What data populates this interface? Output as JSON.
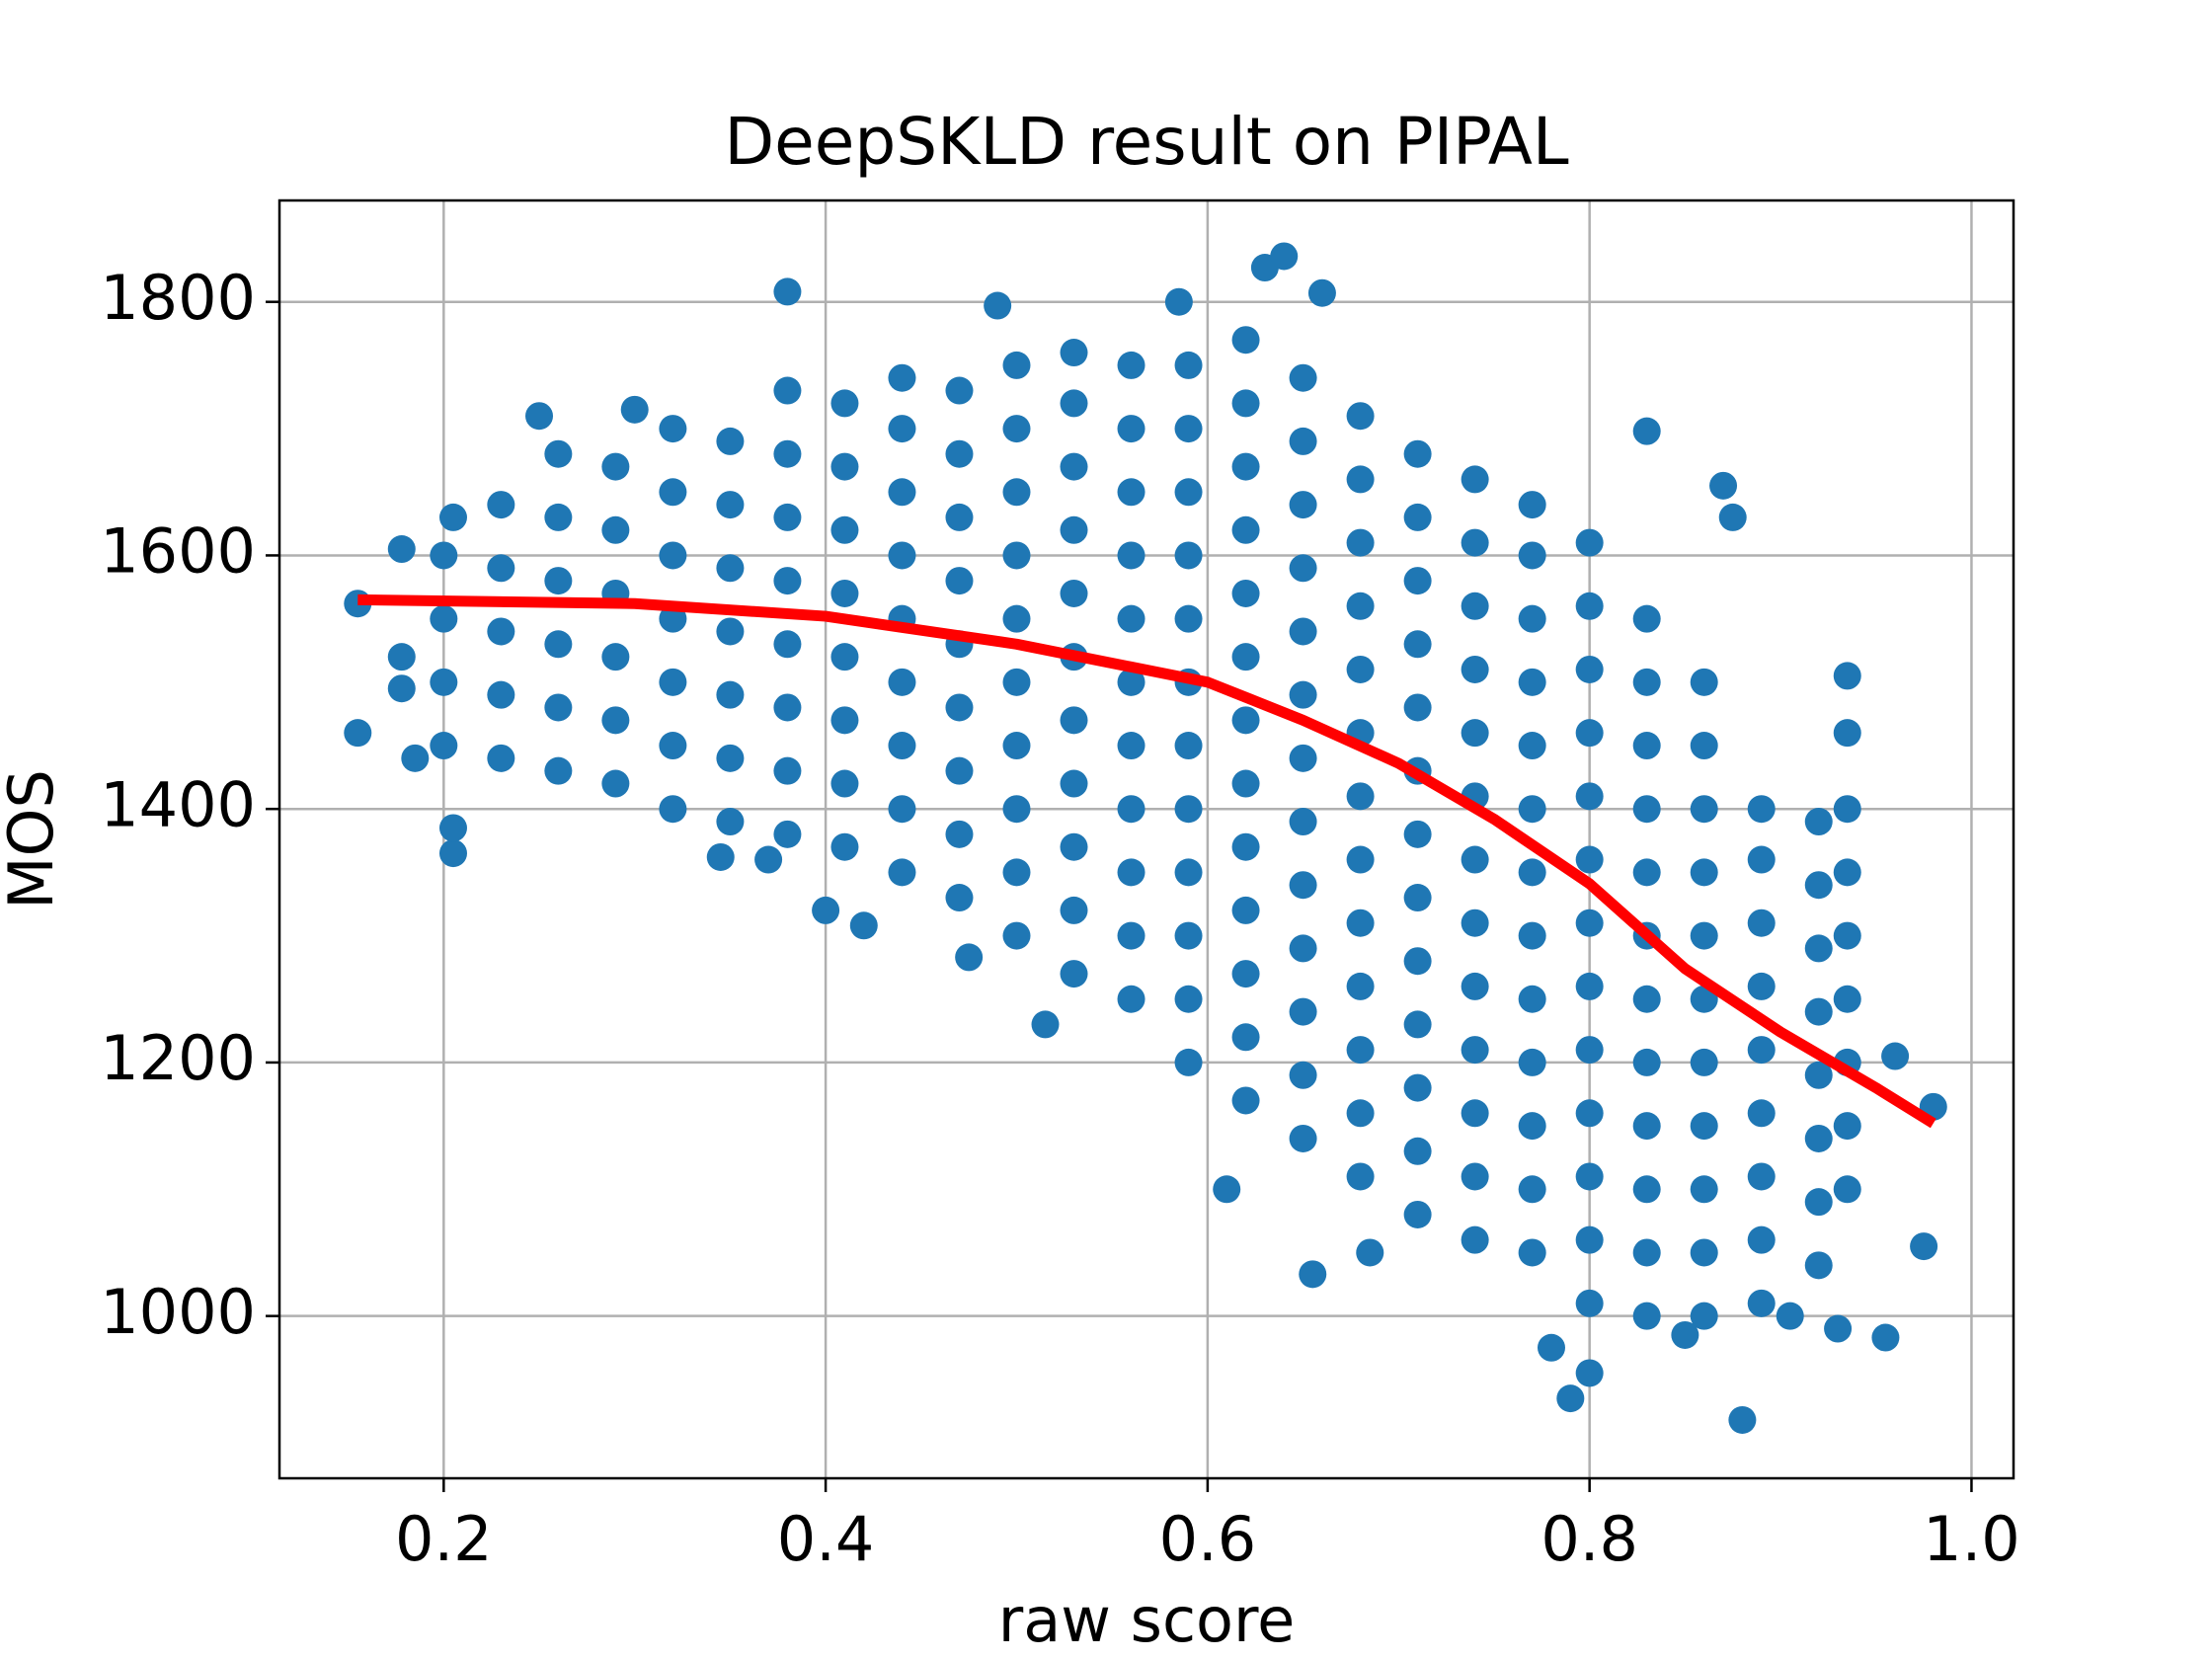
{
  "chart_data": {
    "type": "scatter",
    "title": "DeepSKLD result on PIPAL",
    "x_label": "raw score",
    "y_label": "MOS",
    "xlim": [
      0.114,
      1.022
    ],
    "ylim": [
      872,
      1880
    ],
    "xticks": [
      0.2,
      0.4,
      0.6,
      0.8,
      {
        "value": 1,
        "label": "1.0"
      }
    ],
    "yticks": [
      1000,
      1200,
      1400,
      1600,
      1800
    ],
    "grid": true,
    "series": [
      {
        "type": "scatter",
        "color": "#1f77b4",
        "x": [
          0.2,
          0.2,
          0.2,
          0.2,
          0.23,
          0.23,
          0.23,
          0.23,
          0.23,
          0.26,
          0.26,
          0.26,
          0.26,
          0.26,
          0.26,
          0.29,
          0.29,
          0.29,
          0.29,
          0.29,
          0.29,
          0.32,
          0.32,
          0.32,
          0.32,
          0.32,
          0.32,
          0.32,
          0.35,
          0.35,
          0.35,
          0.35,
          0.35,
          0.35,
          0.35,
          0.38,
          0.38,
          0.38,
          0.38,
          0.38,
          0.38,
          0.38,
          0.38,
          0.41,
          0.41,
          0.41,
          0.41,
          0.41,
          0.41,
          0.41,
          0.41,
          0.44,
          0.44,
          0.44,
          0.44,
          0.44,
          0.44,
          0.44,
          0.44,
          0.44,
          0.47,
          0.47,
          0.47,
          0.47,
          0.47,
          0.47,
          0.47,
          0.47,
          0.47,
          0.5,
          0.5,
          0.5,
          0.5,
          0.5,
          0.5,
          0.5,
          0.5,
          0.5,
          0.5,
          0.53,
          0.53,
          0.53,
          0.53,
          0.53,
          0.53,
          0.53,
          0.53,
          0.53,
          0.53,
          0.53,
          0.56,
          0.56,
          0.56,
          0.56,
          0.56,
          0.56,
          0.56,
          0.56,
          0.56,
          0.56,
          0.56,
          0.59,
          0.59,
          0.59,
          0.59,
          0.59,
          0.59,
          0.59,
          0.59,
          0.59,
          0.59,
          0.59,
          0.59,
          0.62,
          0.62,
          0.62,
          0.62,
          0.62,
          0.62,
          0.62,
          0.62,
          0.62,
          0.62,
          0.62,
          0.62,
          0.62,
          0.65,
          0.65,
          0.65,
          0.65,
          0.65,
          0.65,
          0.65,
          0.65,
          0.65,
          0.65,
          0.65,
          0.65,
          0.65,
          0.68,
          0.68,
          0.68,
          0.68,
          0.68,
          0.68,
          0.68,
          0.68,
          0.68,
          0.68,
          0.68,
          0.68,
          0.68,
          0.71,
          0.71,
          0.71,
          0.71,
          0.71,
          0.71,
          0.71,
          0.71,
          0.71,
          0.71,
          0.71,
          0.71,
          0.71,
          0.74,
          0.74,
          0.74,
          0.74,
          0.74,
          0.74,
          0.74,
          0.74,
          0.74,
          0.74,
          0.74,
          0.74,
          0.74,
          0.77,
          0.77,
          0.77,
          0.77,
          0.77,
          0.77,
          0.77,
          0.77,
          0.77,
          0.77,
          0.77,
          0.77,
          0.77,
          0.8,
          0.8,
          0.8,
          0.8,
          0.8,
          0.8,
          0.8,
          0.8,
          0.8,
          0.8,
          0.8,
          0.8,
          0.8,
          0.83,
          0.83,
          0.83,
          0.83,
          0.83,
          0.83,
          0.83,
          0.83,
          0.83,
          0.83,
          0.83,
          0.83,
          0.86,
          0.86,
          0.86,
          0.86,
          0.86,
          0.86,
          0.86,
          0.86,
          0.86,
          0.86,
          0.86,
          0.89,
          0.89,
          0.89,
          0.89,
          0.89,
          0.89,
          0.89,
          0.89,
          0.89,
          0.92,
          0.92,
          0.92,
          0.92,
          0.92,
          0.92,
          0.92,
          0.92,
          0.935,
          0.935,
          0.935,
          0.935,
          0.935,
          0.935,
          0.935,
          0.935,
          0.935,
          0.205,
          0.205,
          0.205,
          0.155,
          0.155,
          0.178,
          0.178,
          0.178,
          0.185,
          0.38,
          0.49,
          0.63,
          0.64,
          0.66,
          0.585,
          0.655,
          0.685,
          0.79,
          0.88,
          0.85,
          0.975,
          0.955,
          0.98,
          0.96,
          0.83,
          0.87,
          0.875,
          0.475,
          0.515,
          0.42,
          0.4,
          0.37,
          0.345,
          0.25,
          0.3,
          0.61,
          0.8,
          0.78,
          0.93,
          0.905
        ],
        "values": [
          1450,
          1500,
          1550,
          1600,
          1440,
          1490,
          1540,
          1590,
          1640,
          1430,
          1480,
          1530,
          1580,
          1630,
          1680,
          1420,
          1470,
          1520,
          1570,
          1620,
          1670,
          1400,
          1450,
          1500,
          1550,
          1600,
          1650,
          1700,
          1390,
          1440,
          1490,
          1540,
          1590,
          1640,
          1690,
          1380,
          1430,
          1480,
          1530,
          1580,
          1630,
          1680,
          1730,
          1370,
          1420,
          1470,
          1520,
          1570,
          1620,
          1670,
          1720,
          1350,
          1400,
          1450,
          1500,
          1550,
          1600,
          1650,
          1700,
          1740,
          1330,
          1380,
          1430,
          1480,
          1530,
          1580,
          1630,
          1680,
          1730,
          1300,
          1350,
          1400,
          1450,
          1500,
          1550,
          1600,
          1650,
          1700,
          1750,
          1270,
          1320,
          1370,
          1420,
          1470,
          1520,
          1570,
          1620,
          1670,
          1720,
          1760,
          1250,
          1300,
          1350,
          1400,
          1450,
          1500,
          1550,
          1600,
          1650,
          1700,
          1750,
          1200,
          1250,
          1300,
          1350,
          1400,
          1450,
          1500,
          1550,
          1600,
          1650,
          1700,
          1750,
          1170,
          1220,
          1270,
          1320,
          1370,
          1420,
          1470,
          1520,
          1570,
          1620,
          1670,
          1720,
          1770,
          1140,
          1190,
          1240,
          1290,
          1340,
          1390,
          1440,
          1490,
          1540,
          1590,
          1640,
          1690,
          1740,
          1110,
          1160,
          1210,
          1260,
          1310,
          1360,
          1410,
          1460,
          1510,
          1560,
          1610,
          1660,
          1710,
          1080,
          1130,
          1180,
          1230,
          1280,
          1330,
          1380,
          1430,
          1480,
          1530,
          1580,
          1630,
          1680,
          1060,
          1110,
          1160,
          1210,
          1260,
          1310,
          1360,
          1410,
          1460,
          1510,
          1560,
          1610,
          1660,
          1050,
          1100,
          1150,
          1200,
          1250,
          1300,
          1350,
          1400,
          1450,
          1500,
          1550,
          1600,
          1640,
          1010,
          1060,
          1110,
          1160,
          1210,
          1260,
          1310,
          1360,
          1410,
          1460,
          1510,
          1560,
          1610,
          1000,
          1050,
          1100,
          1150,
          1200,
          1250,
          1300,
          1350,
          1400,
          1450,
          1500,
          1550,
          1000,
          1050,
          1100,
          1150,
          1200,
          1250,
          1300,
          1350,
          1400,
          1450,
          1500,
          1010,
          1060,
          1110,
          1160,
          1210,
          1260,
          1310,
          1360,
          1400,
          1040,
          1090,
          1140,
          1190,
          1240,
          1290,
          1340,
          1390,
          1100,
          1150,
          1200,
          1250,
          1300,
          1350,
          1400,
          1460,
          1505,
          1630,
          1365,
          1385,
          1460,
          1562,
          1605,
          1520,
          1495,
          1440,
          1808,
          1797,
          1827,
          1836,
          1807,
          1800,
          1033,
          1050,
          935,
          918,
          985,
          1055,
          983,
          1165,
          1205,
          1698,
          1655,
          1630,
          1283,
          1230,
          1308,
          1320,
          1360,
          1362,
          1710,
          1715,
          1100,
          955,
          975,
          990,
          1000
        ]
      },
      {
        "type": "line",
        "color": "#ff0000",
        "x": [
          0.155,
          0.3,
          0.4,
          0.5,
          0.6,
          0.65,
          0.7,
          0.75,
          0.8,
          0.85,
          0.9,
          0.95,
          0.98
        ],
        "values": [
          1565,
          1562,
          1552,
          1530,
          1500,
          1470,
          1436,
          1392,
          1341,
          1274,
          1224,
          1180,
          1152
        ]
      }
    ]
  }
}
